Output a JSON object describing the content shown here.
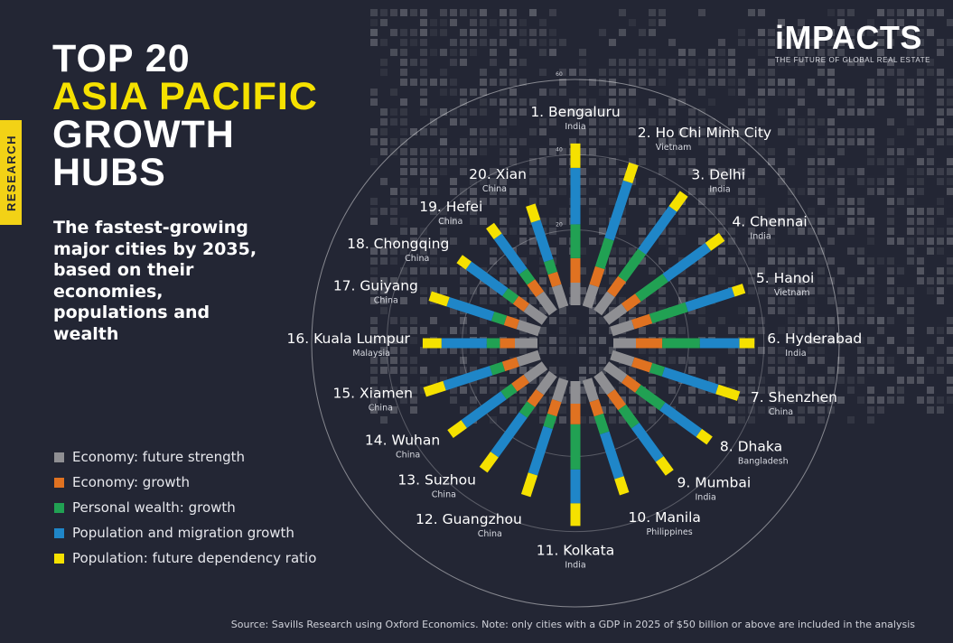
{
  "badge": "RESEARCH",
  "title": {
    "line1": "TOP 20",
    "line2": "ASIA PACIFIC",
    "line3": "GROWTH",
    "line4": "HUBS"
  },
  "subtitle": "The fastest-growing major cities by 2035, based on their economies, populations and wealth",
  "logo": {
    "name": "iMPACTS",
    "tagline": "THE FUTURE OF GLOBAL REAL ESTATE"
  },
  "source": "Source: Savills Research using Oxford Economics. Note: only cities with a GDP in 2025 of $50 billion or above are included in the analysis",
  "colors": {
    "background": "#232634",
    "accent": "#f5e100",
    "economy_future_strength": "#8f8f93",
    "economy_growth": "#e07221",
    "personal_wealth_growth": "#21a153",
    "population_migration_growth": "#1f86c8",
    "population_future_dependency": "#f5e100"
  },
  "chart_data": {
    "type": "radial-stacked-bar",
    "axis_ticks": [
      "20",
      "40",
      "60"
    ],
    "rlim": [
      0,
      60
    ],
    "series": [
      {
        "name": "Economy: future strength",
        "color": "#8f8f93",
        "values": [
          6.0,
          6.0,
          6.0,
          6.0,
          6.0,
          6.0,
          6.0,
          6.0,
          6.0,
          6.0,
          6.0,
          6.0,
          6.0,
          6.0,
          6.0,
          6.0,
          6.0,
          6.0,
          6.0,
          6.0
        ]
      },
      {
        "name": "Economy: growth",
        "color": "#e07221",
        "values": [
          6.5,
          5.0,
          5.0,
          4.5,
          5.0,
          7.0,
          5.0,
          4.5,
          5.0,
          4.0,
          5.5,
          4.0,
          4.0,
          4.0,
          4.0,
          4.0,
          3.5,
          3.5,
          4.0,
          3.5
        ]
      },
      {
        "name": "Personal wealth: growth",
        "color": "#21a153",
        "values": [
          9.0,
          8.0,
          9.0,
          9.0,
          10.0,
          10.0,
          3.5,
          8.0,
          6.0,
          5.0,
          12.0,
          3.5,
          3.5,
          3.5,
          3.5,
          3.5,
          3.5,
          3.5,
          3.5,
          3.5
        ]
      },
      {
        "name": "Population and migration growth",
        "color": "#1f86c8",
        "values": [
          15.0,
          16.0,
          14.0,
          14.0,
          13.0,
          10.5,
          15.0,
          12.0,
          11.0,
          12.5,
          9.0,
          13.0,
          13.0,
          13.0,
          13.0,
          12.0,
          12.5,
          12.0,
          11.5,
          11.0
        ]
      },
      {
        "name": "Population: future dependency ratio",
        "color": "#f5e100",
        "values": [
          6.5,
          5.0,
          5.0,
          4.5,
          3.0,
          4.0,
          6.0,
          3.5,
          4.5,
          4.5,
          6.0,
          6.0,
          5.0,
          4.5,
          5.5,
          5.0,
          5.0,
          3.0,
          3.5,
          4.5
        ]
      }
    ],
    "cities": [
      {
        "label": "1. Bengaluru",
        "country": "India"
      },
      {
        "label": "2. Ho Chi Minh City",
        "country": "Vietnam"
      },
      {
        "label": "3. Delhi",
        "country": "India"
      },
      {
        "label": "4. Chennai",
        "country": "India"
      },
      {
        "label": "5. Hanoi",
        "country": "Vietnam"
      },
      {
        "label": "6. Hyderabad",
        "country": "India"
      },
      {
        "label": "7. Shenzhen",
        "country": "China"
      },
      {
        "label": "8. Dhaka",
        "country": "Bangladesh"
      },
      {
        "label": "9. Mumbai",
        "country": "India"
      },
      {
        "label": "10. Manila",
        "country": "Philippines"
      },
      {
        "label": "11. Kolkata",
        "country": "India"
      },
      {
        "label": "12. Guangzhou",
        "country": "China"
      },
      {
        "label": "13. Suzhou",
        "country": "China"
      },
      {
        "label": "14. Wuhan",
        "country": "China"
      },
      {
        "label": "15. Xiamen",
        "country": "China"
      },
      {
        "label": "16. Kuala Lumpur",
        "country": "Malaysia"
      },
      {
        "label": "17. Guiyang",
        "country": "China"
      },
      {
        "label": "18. Chongqing",
        "country": "China"
      },
      {
        "label": "19. Hefei",
        "country": "China"
      },
      {
        "label": "20. Xian",
        "country": "China"
      }
    ]
  }
}
